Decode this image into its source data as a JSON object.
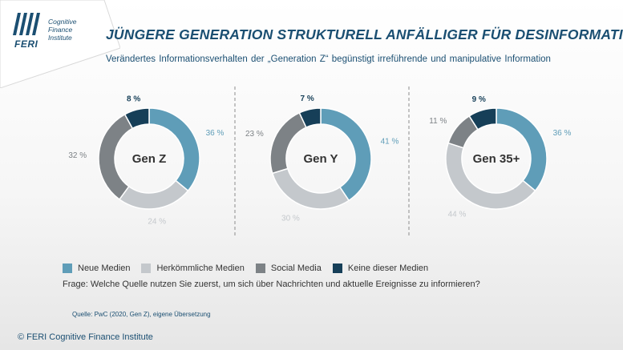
{
  "logo": {
    "name": "FERI",
    "subtitle_line1": "Cognitive",
    "subtitle_line2": "Finance",
    "subtitle_line3": "Institute"
  },
  "title": "JÜNGERE GENERATION STRUKTURELL ANFÄLLIGER FÜR DESINFORMATION",
  "subtitle": "Verändertes Informationsverhalten der „Generation Z“ begünstigt irreführende und manipulative Information",
  "colors": {
    "neue_medien": "#5f9db8",
    "herkoemmliche_medien": "#c4c8cc",
    "social_media": "#7d8286",
    "keine": "#163f58",
    "separator": "#8c8c8c"
  },
  "legend": [
    {
      "label": "Neue Medien",
      "color": "#5f9db8"
    },
    {
      "label": "Herkömmliche Medien",
      "color": "#c4c8cc"
    },
    {
      "label": "Social Media",
      "color": "#7d8286"
    },
    {
      "label": "Keine dieser Medien",
      "color": "#163f58"
    }
  ],
  "question": "Frage: Welche Quelle nutzen Sie zuerst, um sich über Nachrichten und aktuelle Ereignisse zu informieren?",
  "source": "Quelle: PwC (2020, Gen Z), eigene Übersetzung",
  "copyright": "© FERI Cognitive Finance Institute",
  "chart_data": [
    {
      "type": "pie",
      "center_label": "Gen Z",
      "categories": [
        "Neue Medien",
        "Herkömmliche Medien",
        "Social Media",
        "Keine dieser Medien"
      ],
      "values": [
        36,
        24,
        32,
        8
      ],
      "value_labels": [
        "36 %",
        "24 %",
        "32 %",
        "8 %"
      ]
    },
    {
      "type": "pie",
      "center_label": "Gen Y",
      "categories": [
        "Neue Medien",
        "Herkömmliche Medien",
        "Social Media",
        "Keine dieser Medien"
      ],
      "values": [
        41,
        30,
        23,
        7
      ],
      "value_labels": [
        "41 %",
        "30 %",
        "23 %",
        "7 %"
      ]
    },
    {
      "type": "pie",
      "center_label": "Gen 35+",
      "categories": [
        "Neue Medien",
        "Herkömmliche Medien",
        "Social Media",
        "Keine dieser Medien"
      ],
      "values": [
        36,
        44,
        11,
        9
      ],
      "value_labels": [
        "36 %",
        "44 %",
        "11 %",
        "9 %"
      ]
    }
  ]
}
